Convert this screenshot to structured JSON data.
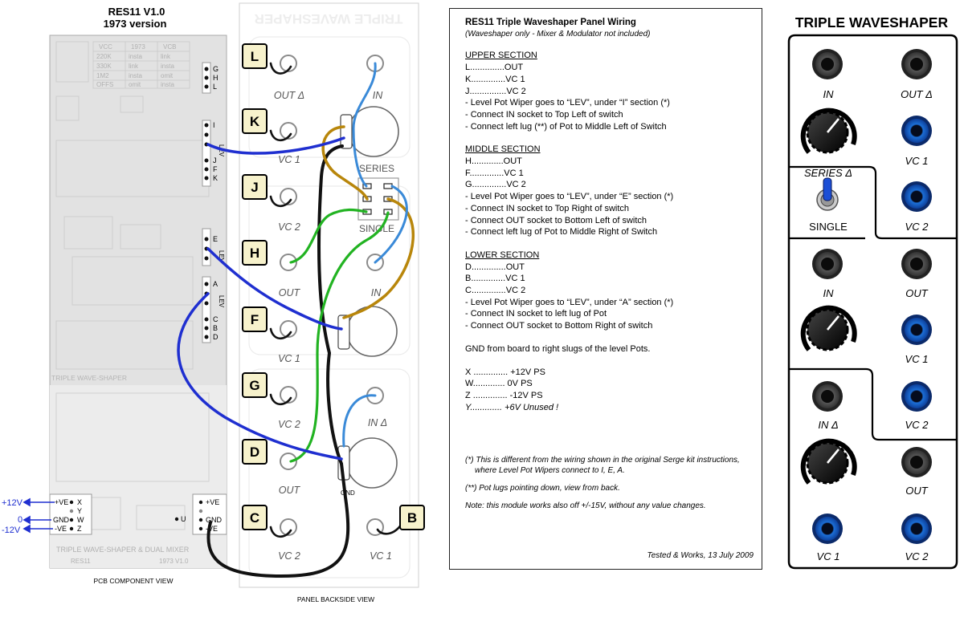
{
  "pcb": {
    "title_line1": "RES11   V1.0",
    "title_line2": "1973 version",
    "caption": "PCB COMPONENT VIEW",
    "board_bottom_text": "TRIPLE WAVE-SHAPER  &  DUAL MIXER",
    "board_left_text": "RES11",
    "board_right_text": "1973 V1.0",
    "board_mid_text": "TRIPLE WAVE-SHAPER",
    "table": {
      "headers": [
        "VCC",
        "1973",
        "VCB"
      ],
      "rows": [
        [
          "220K",
          "insta",
          "link"
        ],
        [
          "330K",
          "link",
          "insta"
        ],
        [
          "1M2",
          "insta",
          "omit"
        ],
        [
          "OFFS",
          "omit",
          "insta"
        ]
      ]
    },
    "pads_upper": [
      "G",
      "H",
      "L"
    ],
    "pads_i": [
      "I",
      "LEV",
      "J",
      "F",
      "K"
    ],
    "pads_e": [
      "E",
      "LEV"
    ],
    "pads_a": [
      "A",
      "LEV",
      "C",
      "B",
      "D"
    ],
    "power_left": [
      "+VE",
      "X",
      "Y",
      "GND",
      "W",
      "-VE",
      "Z"
    ],
    "power_right": [
      "+VE",
      "GND",
      "-VE",
      "U"
    ],
    "supply_labels": [
      "+12V",
      "0",
      "-12V"
    ]
  },
  "panel": {
    "caption": "PANEL BACKSIDE VIEW",
    "watermark": "TRIPLE WAVESHAPER",
    "jack_labels": {
      "out_delta": "OUT Δ",
      "in_top": "IN",
      "vc1_k": "VC 1",
      "vc2_j": "VC 2",
      "out_h": "OUT",
      "in_mid": "IN",
      "vc1_f": "VC 1",
      "vc2_g": "VC 2",
      "in_delta": "IN Δ",
      "out_d": "OUT",
      "vc2_c": "VC 2",
      "vc1_b": "VC 1"
    },
    "switch_top": "SERIES",
    "switch_bottom": "SINGLE",
    "gnd_label": "GND",
    "tags": [
      "L",
      "K",
      "J",
      "H",
      "F",
      "G",
      "D",
      "C",
      "B"
    ]
  },
  "notes": {
    "title": "RES11 Triple Waveshaper Panel Wiring",
    "subtitle": "(Waveshaper only - Mixer & Modulator not included)",
    "upper": {
      "heading": "UPPER SECTION",
      "lines": [
        "L..............OUT",
        "K..............VC 1",
        "J...............VC 2",
        "- Level Pot Wiper goes to “LEV”, under “I” section (*)",
        "- Connect IN socket to Top Left of switch",
        "- Connect left lug (**) of Pot to Middle Left of Switch"
      ]
    },
    "middle": {
      "heading": "MIDDLE SECTION",
      "lines": [
        "H.............OUT",
        "F..............VC 1",
        "G..............VC 2",
        "- Level Pot Wiper goes to “LEV”, under “E” section (*)",
        "- Connect IN socket to Top Right of switch",
        "- Connect OUT socket to Bottom Left of switch",
        "- Connect left lug of Pot to Middle Right of Switch"
      ]
    },
    "lower": {
      "heading": "LOWER SECTION",
      "lines": [
        "D..............OUT",
        "B..............VC 1",
        "C..............VC 2",
        "- Level Pot Wiper goes to “LEV”, under “A” section (*)",
        "- Connect IN socket to left lug of Pot",
        "- Connect OUT socket to Bottom Right of switch"
      ]
    },
    "gnd": "GND from board to right slugs of the level Pots.",
    "power": {
      "x": "X .............. +12V PS",
      "w": "W............. 0V PS",
      "z": "Z .............. -12V PS",
      "y": "Y............. +6V Unused !"
    },
    "note1": "(*) This is different from the wiring shown in the original Serge kit instructions, where Level Pot Wipers connect to I, E, A.",
    "note2": "(**) Pot lugs pointing down, view from back.",
    "note3": "Note: this module works also off +/-15V, without any value changes.",
    "footer": "Tested & Works, 13 July 2009"
  },
  "front": {
    "title": "TRIPLE WAVESHAPER",
    "labels": {
      "in1": "IN",
      "out_delta": "OUT Δ",
      "vc1_a": "VC 1",
      "series": "SERIES Δ",
      "single": "SINGLE",
      "vc2_a": "VC 2",
      "in2": "IN",
      "out2": "OUT",
      "vc1_b": "VC 1",
      "in_delta": "IN Δ",
      "vc2_b": "VC 2",
      "out3": "OUT",
      "vc1_c": "VC 1",
      "vc2_c": "VC 2"
    }
  },
  "colors": {
    "wire_blue": "#1f2fd0",
    "wire_light_blue": "#3a8ad8",
    "wire_green": "#22b322",
    "wire_gold": "#b8860b",
    "wire_black": "#111111",
    "front_blue": "#1c6fd6"
  }
}
